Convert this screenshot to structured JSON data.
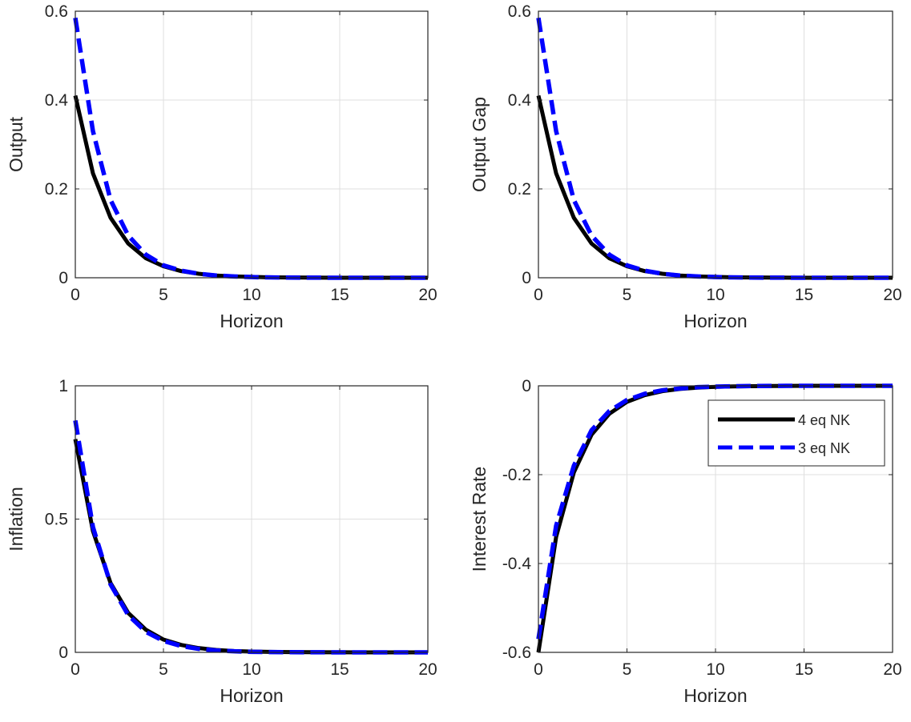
{
  "chart_data": [
    {
      "type": "line",
      "title": "",
      "xlabel": "Horizon",
      "ylabel": "Output",
      "xlim": [
        0,
        20
      ],
      "ylim": [
        0,
        0.6
      ],
      "xticks": [
        0,
        5,
        10,
        15,
        20
      ],
      "xtick_labels": [
        "0",
        "5",
        "10",
        "15",
        "20"
      ],
      "yticks": [
        0,
        0.2,
        0.4,
        0.6
      ],
      "ytick_labels": [
        "0",
        "0.2",
        "0.4",
        "0.6"
      ],
      "grid": true,
      "x": [
        0,
        1,
        2,
        3,
        4,
        5,
        6,
        7,
        8,
        9,
        10,
        11,
        12,
        13,
        14,
        15,
        16,
        17,
        18,
        19,
        20
      ],
      "series": [
        {
          "name": "4 eq NK",
          "color": "#000000",
          "style": "solid",
          "values": [
            0.41,
            0.235,
            0.135,
            0.077,
            0.044,
            0.026,
            0.015,
            0.009,
            0.005,
            0.003,
            0.002,
            0.001,
            0.0006,
            0.0004,
            0.0002,
            0.0001,
            0.0001,
            0,
            0,
            0,
            0
          ]
        },
        {
          "name": "3 eq NK",
          "color": "#0000ff",
          "style": "dashed",
          "values": [
            0.585,
            0.33,
            0.175,
            0.095,
            0.052,
            0.028,
            0.016,
            0.009,
            0.005,
            0.003,
            0.0015,
            0.0008,
            0.0004,
            0.0002,
            0.0001,
            0.0001,
            0,
            0,
            0,
            0,
            0
          ]
        }
      ]
    },
    {
      "type": "line",
      "title": "",
      "xlabel": "Horizon",
      "ylabel": "Output Gap",
      "xlim": [
        0,
        20
      ],
      "ylim": [
        0,
        0.6
      ],
      "xticks": [
        0,
        5,
        10,
        15,
        20
      ],
      "xtick_labels": [
        "0",
        "5",
        "10",
        "15",
        "20"
      ],
      "yticks": [
        0,
        0.2,
        0.4,
        0.6
      ],
      "ytick_labels": [
        "0",
        "0.2",
        "0.4",
        "0.6"
      ],
      "grid": true,
      "x": [
        0,
        1,
        2,
        3,
        4,
        5,
        6,
        7,
        8,
        9,
        10,
        11,
        12,
        13,
        14,
        15,
        16,
        17,
        18,
        19,
        20
      ],
      "series": [
        {
          "name": "4 eq NK",
          "color": "#000000",
          "style": "solid",
          "values": [
            0.41,
            0.235,
            0.135,
            0.077,
            0.044,
            0.026,
            0.015,
            0.009,
            0.005,
            0.003,
            0.002,
            0.001,
            0.0006,
            0.0004,
            0.0002,
            0.0001,
            0.0001,
            0,
            0,
            0,
            0
          ]
        },
        {
          "name": "3 eq NK",
          "color": "#0000ff",
          "style": "dashed",
          "values": [
            0.585,
            0.33,
            0.175,
            0.095,
            0.052,
            0.028,
            0.016,
            0.009,
            0.005,
            0.003,
            0.0015,
            0.0008,
            0.0004,
            0.0002,
            0.0001,
            0.0001,
            0,
            0,
            0,
            0,
            0
          ]
        }
      ]
    },
    {
      "type": "line",
      "title": "",
      "xlabel": "Horizon",
      "ylabel": "Inflation",
      "xlim": [
        0,
        20
      ],
      "ylim": [
        0,
        1
      ],
      "xticks": [
        0,
        5,
        10,
        15,
        20
      ],
      "xtick_labels": [
        "0",
        "5",
        "10",
        "15",
        "20"
      ],
      "yticks": [
        0,
        0.5,
        1
      ],
      "ytick_labels": [
        "0",
        "0.5",
        "1"
      ],
      "grid": true,
      "x": [
        0,
        1,
        2,
        3,
        4,
        5,
        6,
        7,
        8,
        9,
        10,
        11,
        12,
        13,
        14,
        15,
        16,
        17,
        18,
        19,
        20
      ],
      "series": [
        {
          "name": "4 eq NK",
          "color": "#000000",
          "style": "solid",
          "values": [
            0.8,
            0.455,
            0.26,
            0.148,
            0.085,
            0.048,
            0.028,
            0.016,
            0.009,
            0.005,
            0.003,
            0.0017,
            0.001,
            0.0006,
            0.0003,
            0.0002,
            0.0001,
            0,
            0,
            0,
            0
          ]
        },
        {
          "name": "3 eq NK",
          "color": "#0000ff",
          "style": "dashed",
          "values": [
            0.87,
            0.47,
            0.255,
            0.14,
            0.077,
            0.043,
            0.024,
            0.013,
            0.007,
            0.004,
            0.002,
            0.0012,
            0.0007,
            0.0004,
            0.0002,
            0.0001,
            0,
            0,
            0,
            0,
            0
          ]
        }
      ]
    },
    {
      "type": "line",
      "title": "",
      "xlabel": "Horizon",
      "ylabel": "Interest Rate",
      "xlim": [
        0,
        20
      ],
      "ylim": [
        -0.6,
        0
      ],
      "xticks": [
        0,
        5,
        10,
        15,
        20
      ],
      "xtick_labels": [
        "0",
        "5",
        "10",
        "15",
        "20"
      ],
      "yticks": [
        -0.6,
        -0.4,
        -0.2,
        0
      ],
      "ytick_labels": [
        "-0.6",
        "-0.4",
        "-0.2",
        "0"
      ],
      "grid": true,
      "legend": {
        "placement": "top-right",
        "entries": [
          "4 eq NK",
          "3 eq NK"
        ]
      },
      "x": [
        0,
        1,
        2,
        3,
        4,
        5,
        6,
        7,
        8,
        9,
        10,
        11,
        12,
        13,
        14,
        15,
        16,
        17,
        18,
        19,
        20
      ],
      "series": [
        {
          "name": "4 eq NK",
          "color": "#000000",
          "style": "solid",
          "values": [
            -0.6,
            -0.34,
            -0.195,
            -0.11,
            -0.063,
            -0.036,
            -0.021,
            -0.012,
            -0.007,
            -0.004,
            -0.0023,
            -0.0013,
            -0.0008,
            -0.0004,
            -0.0002,
            -0.0001,
            -0.0001,
            0,
            0,
            0,
            0
          ]
        },
        {
          "name": "3 eq NK",
          "color": "#0000ff",
          "style": "dashed",
          "values": [
            -0.57,
            -0.315,
            -0.18,
            -0.1,
            -0.057,
            -0.032,
            -0.018,
            -0.01,
            -0.006,
            -0.003,
            -0.0017,
            -0.001,
            -0.0005,
            -0.0003,
            -0.0001,
            -0.0001,
            0,
            0,
            0,
            0,
            0
          ]
        }
      ]
    }
  ]
}
